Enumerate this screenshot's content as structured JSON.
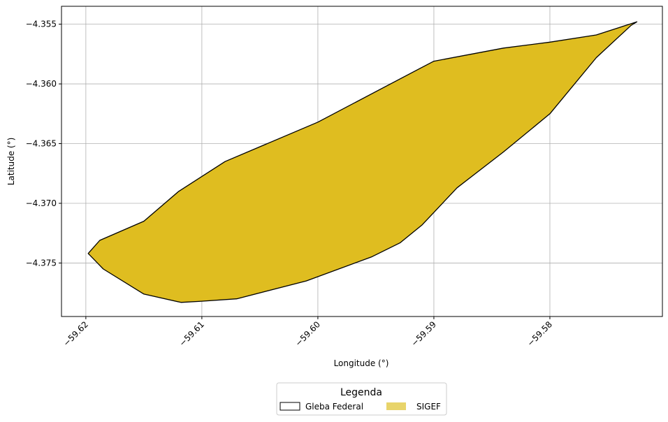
{
  "chart_data": {
    "type": "map",
    "xlabel": "Longitude (°)",
    "ylabel": "Latitude (°)",
    "xlim": [
      -59.6221,
      -59.5703
    ],
    "ylim": [
      -4.37948,
      -4.3535
    ],
    "xticks": [
      -59.62,
      -59.61,
      -59.6,
      -59.59,
      -59.58
    ],
    "xtick_labels": [
      "−59.62",
      "−59.61",
      "−59.60",
      "−59.59",
      "−59.58"
    ],
    "yticks": [
      -4.355,
      -4.36,
      -4.365,
      -4.37,
      -4.375
    ],
    "ytick_labels": [
      "−4.355",
      "−4.360",
      "−4.365",
      "−4.370",
      "−4.375"
    ],
    "grid": true,
    "fill_color": "#dfbd20",
    "legend_fill_color": "#e8d46a",
    "polygon": [
      [
        -59.6198,
        -4.3742
      ],
      [
        -59.6188,
        -4.3731
      ],
      [
        -59.615,
        -4.3715
      ],
      [
        -59.612,
        -4.369
      ],
      [
        -59.608,
        -4.3665
      ],
      [
        -59.6,
        -4.3632
      ],
      [
        -59.5912,
        -4.3587
      ],
      [
        -59.59,
        -4.3581
      ],
      [
        -59.584,
        -4.357
      ],
      [
        -59.58,
        -4.3565
      ],
      [
        -59.576,
        -4.3559
      ],
      [
        -59.5725,
        -4.3548
      ],
      [
        -59.573,
        -4.3551
      ],
      [
        -59.576,
        -4.3578
      ],
      [
        -59.58,
        -4.3625
      ],
      [
        -59.584,
        -4.3657
      ],
      [
        -59.588,
        -4.3687
      ],
      [
        -59.591,
        -4.3718
      ],
      [
        -59.5929,
        -4.3733
      ],
      [
        -59.5954,
        -4.3745
      ],
      [
        -59.601,
        -4.3765
      ],
      [
        -59.607,
        -4.378
      ],
      [
        -59.61,
        -4.3782
      ],
      [
        -59.6118,
        -4.3783
      ],
      [
        -59.615,
        -4.3776
      ],
      [
        -59.6185,
        -4.3755
      ],
      [
        -59.6198,
        -4.3742
      ]
    ],
    "legend": {
      "title": "Legenda",
      "placement": "bottom-center",
      "entries": [
        {
          "label": "Gleba Federal",
          "style": "outline"
        },
        {
          "label": "SIGEF",
          "style": "filled"
        }
      ]
    }
  }
}
